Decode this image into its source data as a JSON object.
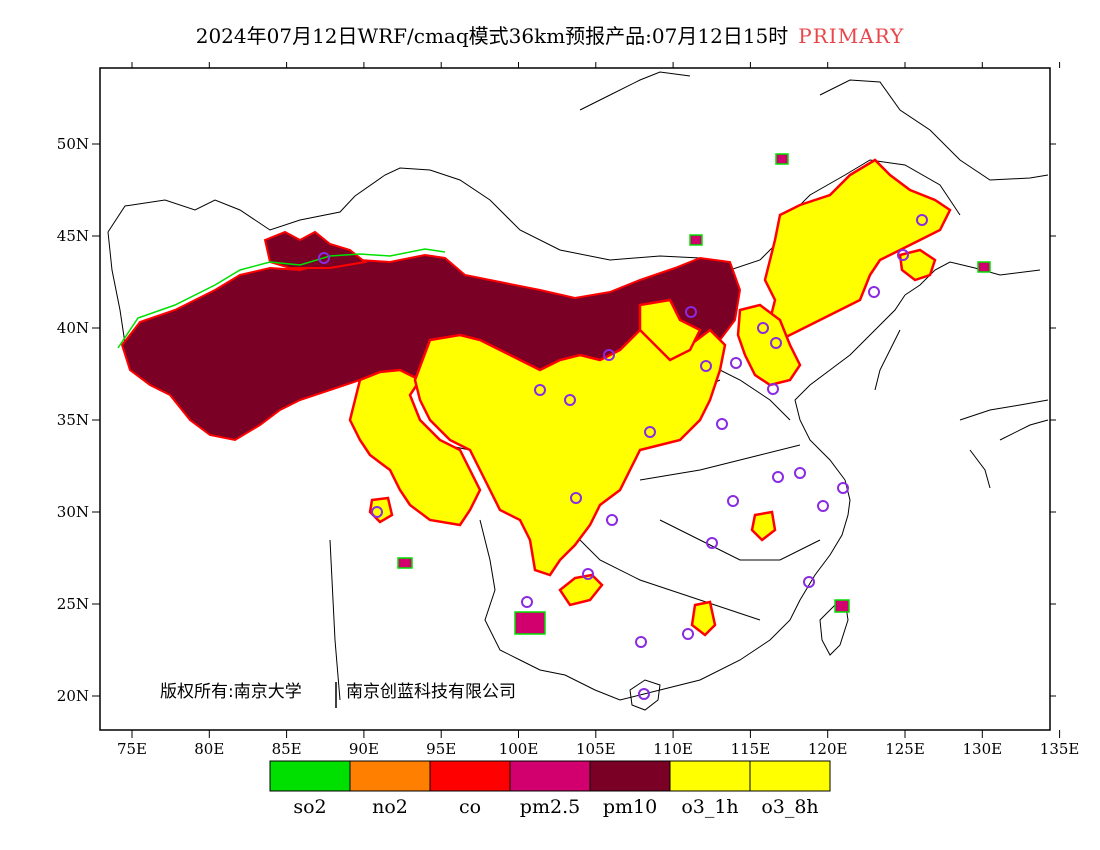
{
  "title": {
    "main": "2024年07月12日WRF/cmaq模式36km预报产品:07月12日15时",
    "tag": "PRIMARY",
    "tag_color": "#e8474a"
  },
  "axes": {
    "x_ticks": [
      "75E",
      "80E",
      "85E",
      "90E",
      "95E",
      "100E",
      "105E",
      "110E",
      "115E",
      "120E",
      "125E",
      "130E",
      "135E"
    ],
    "y_ticks": [
      "50N",
      "45N",
      "40N",
      "35N",
      "30N",
      "25N",
      "20N"
    ]
  },
  "copyright": {
    "left": "版权所有:南京大学",
    "right": "南京创蓝科技有限公司"
  },
  "legend": [
    {
      "label": "so2",
      "color": "#00e000"
    },
    {
      "label": "no2",
      "color": "#ff7f00"
    },
    {
      "label": "co",
      "color": "#ff0000"
    },
    {
      "label": "pm2.5",
      "color": "#d2006e"
    },
    {
      "label": "pm10",
      "color": "#7a0026"
    },
    {
      "label": "o3_1h",
      "color": "#ffff00"
    },
    {
      "label": "o3_8h",
      "color": "#ffff00"
    }
  ],
  "station_marker_color": "#8a2be2",
  "colors": {
    "pm10": "#7a0026",
    "o3": "#ffff00",
    "edge_red": "#ff0000",
    "edge_green": "#00e000"
  }
}
